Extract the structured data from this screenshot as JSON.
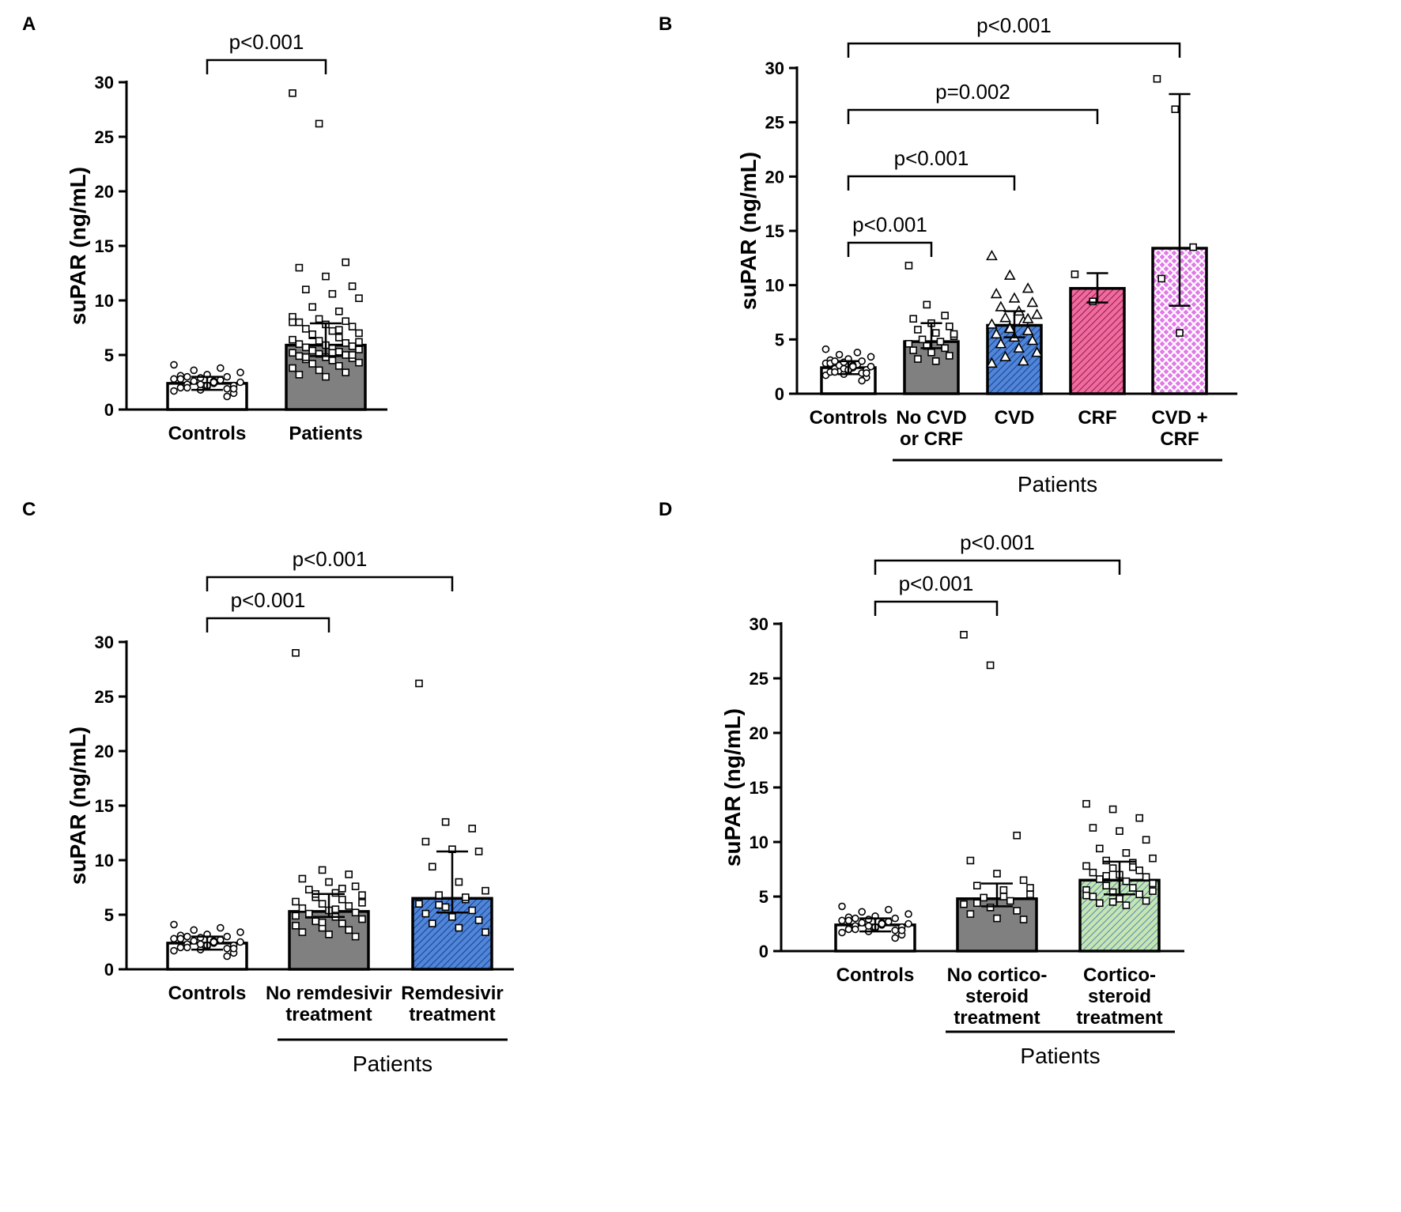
{
  "colors": {
    "white": "#ffffff",
    "gray": "#808080",
    "blue": "#4f86d9",
    "pink": "#f06a9e",
    "magenta": "#e07ae8",
    "green": "#c5e5b2",
    "black": "#000000"
  },
  "chart_data": [
    {
      "id": "A",
      "type": "bar",
      "panel_label": "A",
      "ylabel": "suPAR (ng/mL)",
      "ylim": [
        0,
        30
      ],
      "yticks": [
        0,
        5,
        10,
        15,
        20,
        25,
        30
      ],
      "categories": [
        {
          "label": [
            "Controls"
          ],
          "value": 2.4,
          "err_low": 1.8,
          "err_high": 3.0,
          "fill": "white",
          "pattern": "none",
          "marker": "circle",
          "points": [
            1.7,
            1.8,
            1.9,
            2.0,
            2.1,
            2.2,
            2.3,
            2.4,
            2.5,
            2.6,
            2.7,
            2.8,
            2.9,
            3.0,
            3.1,
            3.2,
            1.5,
            2.0,
            2.6,
            3.4,
            3.6,
            3.8,
            4.1,
            2.3,
            1.2,
            2.8,
            2.2,
            1.9,
            3.0,
            2.5
          ]
        },
        {
          "label": [
            "Patients"
          ],
          "value": 5.9,
          "err_low": 4.9,
          "err_high": 7.9,
          "fill": "gray",
          "pattern": "none",
          "marker": "square",
          "points": [
            29.0,
            26.2,
            13.5,
            13.0,
            12.2,
            11.3,
            11.0,
            10.6,
            10.2,
            9.4,
            9.0,
            8.5,
            8.3,
            8.1,
            8.0,
            7.8,
            7.6,
            7.4,
            7.2,
            7.0,
            6.8,
            6.6,
            6.4,
            6.3,
            6.1,
            6.0,
            5.9,
            5.8,
            5.7,
            5.6,
            5.5,
            5.4,
            5.3,
            5.2,
            5.1,
            5.0,
            4.9,
            4.8,
            4.7,
            4.6,
            4.5,
            4.3,
            4.2,
            4.0,
            3.8,
            3.6,
            3.4,
            3.2,
            3.0,
            5.0,
            4.8,
            5.2,
            6.2,
            6.9,
            7.3,
            8.0
          ]
        }
      ],
      "comparisons": [
        {
          "from": 0,
          "to": 1,
          "label": "p<0.001"
        }
      ],
      "group_label": null
    },
    {
      "id": "B",
      "type": "bar",
      "panel_label": "B",
      "ylabel": "suPAR (ng/mL)",
      "ylim": [
        0,
        30
      ],
      "yticks": [
        0,
        5,
        10,
        15,
        20,
        25,
        30
      ],
      "categories": [
        {
          "label": [
            "Controls"
          ],
          "value": 2.4,
          "err_low": 1.8,
          "err_high": 3.0,
          "fill": "white",
          "pattern": "none",
          "marker": "circle",
          "points": [
            1.7,
            1.8,
            1.9,
            2.0,
            2.1,
            2.2,
            2.3,
            2.4,
            2.5,
            2.6,
            2.7,
            2.8,
            2.9,
            3.0,
            3.1,
            3.2,
            1.5,
            2.0,
            2.6,
            3.4,
            3.6,
            3.8,
            4.1,
            2.3,
            1.2,
            2.8,
            2.2,
            1.9,
            3.0,
            2.5
          ]
        },
        {
          "label": [
            "No CVD",
            "or CRF"
          ],
          "value": 4.8,
          "err_low": 4.2,
          "err_high": 6.5,
          "fill": "gray",
          "pattern": "none",
          "marker": "square",
          "points": [
            11.8,
            8.2,
            7.2,
            6.9,
            6.5,
            6.2,
            5.9,
            5.6,
            5.3,
            5.0,
            4.8,
            4.6,
            4.4,
            4.2,
            4.0,
            3.8,
            3.5,
            3.2,
            3.0,
            5.5
          ]
        },
        {
          "label": [
            "CVD"
          ],
          "value": 6.3,
          "err_low": 5.2,
          "err_high": 7.6,
          "fill": "blue",
          "pattern": "hatch",
          "marker": "triangle",
          "points": [
            12.7,
            10.9,
            9.7,
            9.2,
            8.8,
            8.4,
            8.0,
            7.6,
            7.3,
            7.0,
            6.7,
            6.4,
            6.1,
            5.8,
            5.5,
            5.2,
            4.9,
            4.6,
            4.2,
            3.8,
            3.4,
            3.0,
            2.8,
            6.0,
            6.9
          ]
        },
        {
          "label": [
            "CRF"
          ],
          "value": 9.7,
          "err_low": 8.4,
          "err_high": 11.1,
          "fill": "pink",
          "pattern": "hatch",
          "marker": "square",
          "points": [
            11.0,
            8.5
          ]
        },
        {
          "label": [
            "CVD +",
            "CRF"
          ],
          "value": 13.4,
          "err_low": 8.1,
          "err_high": 27.6,
          "fill": "magenta",
          "pattern": "crosshatch",
          "marker": "square",
          "points": [
            29.0,
            26.2,
            13.5,
            10.6,
            5.6
          ]
        }
      ],
      "comparisons": [
        {
          "from": 0,
          "to": 1,
          "label": "p<0.001"
        },
        {
          "from": 0,
          "to": 2,
          "label": "p<0.001"
        },
        {
          "from": 0,
          "to": 3,
          "label": "p=0.002"
        },
        {
          "from": 0,
          "to": 4,
          "label": "p<0.001"
        }
      ],
      "group_label": {
        "text": "Patients",
        "from": 1,
        "to": 4
      }
    },
    {
      "id": "C",
      "type": "bar",
      "panel_label": "C",
      "ylabel": "suPAR (ng/mL)",
      "ylim": [
        0,
        30
      ],
      "yticks": [
        0,
        5,
        10,
        15,
        20,
        25,
        30
      ],
      "categories": [
        {
          "label": [
            "Controls"
          ],
          "value": 2.4,
          "err_low": 1.8,
          "err_high": 3.0,
          "fill": "white",
          "pattern": "none",
          "marker": "circle",
          "points": [
            1.7,
            1.8,
            1.9,
            2.0,
            2.1,
            2.2,
            2.3,
            2.4,
            2.5,
            2.6,
            2.7,
            2.8,
            2.9,
            3.0,
            3.1,
            3.2,
            1.5,
            2.0,
            2.6,
            3.4,
            3.6,
            3.8,
            4.1,
            2.3,
            1.2,
            2.8,
            2.2,
            1.9,
            3.0,
            2.5
          ]
        },
        {
          "label": [
            "No remdesivir",
            "treatment"
          ],
          "value": 5.3,
          "err_low": 4.8,
          "err_high": 6.9,
          "fill": "gray",
          "pattern": "none",
          "marker": "square",
          "points": [
            29.0,
            9.1,
            8.7,
            8.3,
            8.0,
            7.6,
            7.3,
            7.0,
            6.8,
            6.6,
            6.4,
            6.2,
            6.0,
            5.8,
            5.6,
            5.4,
            5.2,
            5.0,
            4.8,
            4.6,
            4.4,
            4.2,
            4.0,
            3.8,
            3.6,
            3.4,
            3.2,
            3.0,
            5.1,
            5.5,
            6.1,
            6.9,
            7.4,
            4.9,
            4.3
          ]
        },
        {
          "label": [
            "Remdesivir",
            "treatment"
          ],
          "value": 6.5,
          "err_low": 5.2,
          "err_high": 10.8,
          "fill": "blue",
          "pattern": "hatch",
          "marker": "square",
          "points": [
            26.2,
            13.5,
            12.9,
            11.7,
            11.0,
            10.8,
            9.4,
            8.0,
            7.2,
            6.8,
            6.4,
            6.0,
            5.7,
            5.4,
            5.1,
            4.8,
            4.5,
            4.2,
            3.8,
            3.4,
            5.9,
            6.6
          ]
        }
      ],
      "comparisons": [
        {
          "from": 0,
          "to": 1,
          "label": "p<0.001"
        },
        {
          "from": 0,
          "to": 2,
          "label": "p<0.001"
        }
      ],
      "group_label": {
        "text": "Patients",
        "from": 1,
        "to": 2
      }
    },
    {
      "id": "D",
      "type": "bar",
      "panel_label": "D",
      "ylabel": "suPAR (ng/mL)",
      "ylim": [
        0,
        30
      ],
      "yticks": [
        0,
        5,
        10,
        15,
        20,
        25,
        30
      ],
      "categories": [
        {
          "label": [
            "Controls"
          ],
          "value": 2.4,
          "err_low": 1.8,
          "err_high": 3.0,
          "fill": "white",
          "pattern": "none",
          "marker": "circle",
          "points": [
            1.7,
            1.8,
            1.9,
            2.0,
            2.1,
            2.2,
            2.3,
            2.4,
            2.5,
            2.6,
            2.7,
            2.8,
            2.9,
            3.0,
            3.1,
            3.2,
            1.5,
            2.0,
            2.6,
            3.4,
            3.6,
            3.8,
            4.1,
            2.3,
            1.2,
            2.8,
            2.2,
            1.9,
            3.0,
            2.5
          ]
        },
        {
          "label": [
            "No cortico-",
            "steroid",
            "treatment"
          ],
          "value": 4.8,
          "err_low": 4.1,
          "err_high": 6.2,
          "fill": "gray",
          "pattern": "none",
          "marker": "square",
          "points": [
            29.0,
            26.2,
            10.6,
            8.3,
            7.1,
            6.5,
            6.0,
            5.6,
            5.2,
            4.9,
            4.6,
            4.3,
            4.0,
            3.7,
            3.4,
            3.0,
            2.9,
            4.4,
            5.0,
            5.8
          ]
        },
        {
          "label": [
            "Cortico-",
            "steroid",
            "treatment"
          ],
          "value": 6.5,
          "err_low": 5.2,
          "err_high": 8.2,
          "fill": "green",
          "pattern": "hatch",
          "marker": "square",
          "points": [
            13.5,
            13.0,
            12.2,
            11.3,
            11.0,
            10.2,
            9.4,
            9.0,
            8.5,
            8.3,
            8.1,
            7.8,
            7.6,
            7.4,
            7.2,
            7.0,
            6.8,
            6.6,
            6.4,
            6.2,
            6.0,
            5.8,
            5.6,
            5.4,
            5.2,
            5.0,
            4.8,
            4.6,
            4.4,
            4.2,
            5.5,
            6.9,
            7.7,
            5.1,
            4.5
          ]
        }
      ],
      "comparisons": [
        {
          "from": 0,
          "to": 1,
          "label": "p<0.001"
        },
        {
          "from": 0,
          "to": 2,
          "label": "p<0.001"
        }
      ],
      "group_label": {
        "text": "Patients",
        "from": 1,
        "to": 2
      }
    }
  ]
}
